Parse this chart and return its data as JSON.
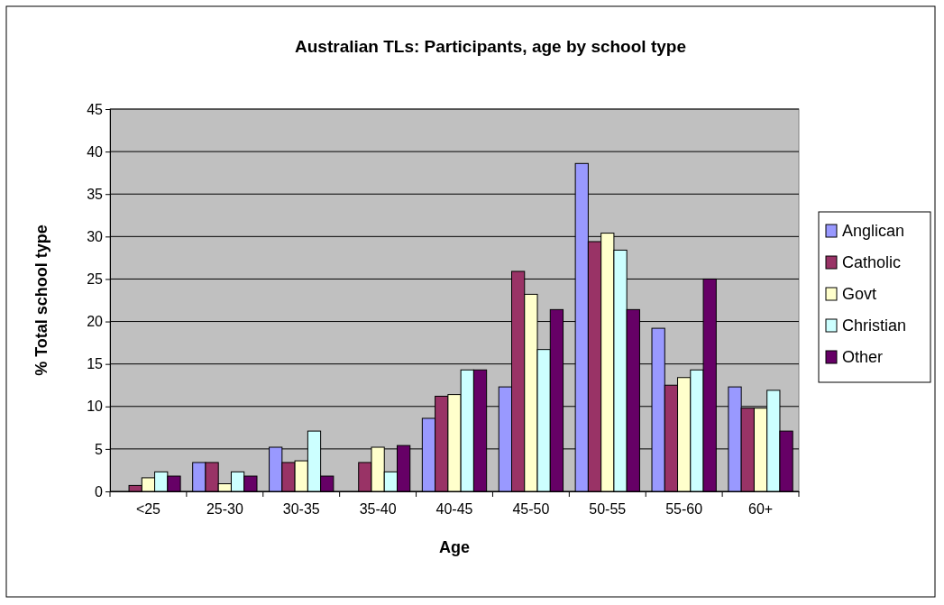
{
  "chart_data": {
    "type": "bar",
    "title": "Australian TLs: Participants, age by school type",
    "xlabel": "Age",
    "ylabel": "% Total school type",
    "categories": [
      "<25",
      "25-30",
      "30-35",
      "35-40",
      "40-45",
      "45-50",
      "50-55",
      "55-60",
      "60+"
    ],
    "series": [
      {
        "name": "Anglican",
        "color": "#9999ff",
        "values": [
          0,
          3.4,
          5.2,
          0,
          8.6,
          12.3,
          38.6,
          19.2,
          12.3
        ]
      },
      {
        "name": "Catholic",
        "color": "#993366",
        "values": [
          0.7,
          3.4,
          3.4,
          3.4,
          11.2,
          25.9,
          29.4,
          12.5,
          9.8
        ]
      },
      {
        "name": "Govt",
        "color": "#ffffcc",
        "values": [
          1.6,
          0.9,
          3.6,
          5.2,
          11.4,
          23.2,
          30.4,
          13.4,
          9.8
        ]
      },
      {
        "name": "Christian",
        "color": "#ccffff",
        "values": [
          2.3,
          2.3,
          7.1,
          2.3,
          14.3,
          16.7,
          28.4,
          14.3,
          11.9
        ]
      },
      {
        "name": "Other",
        "color": "#660066",
        "values": [
          1.8,
          1.8,
          1.8,
          5.4,
          14.3,
          21.4,
          21.4,
          25,
          7.1
        ]
      }
    ],
    "ylim": [
      0,
      45
    ],
    "yticks": [
      0,
      5,
      10,
      15,
      20,
      25,
      30,
      35,
      40,
      45
    ],
    "grid": "y",
    "legend": "right"
  }
}
